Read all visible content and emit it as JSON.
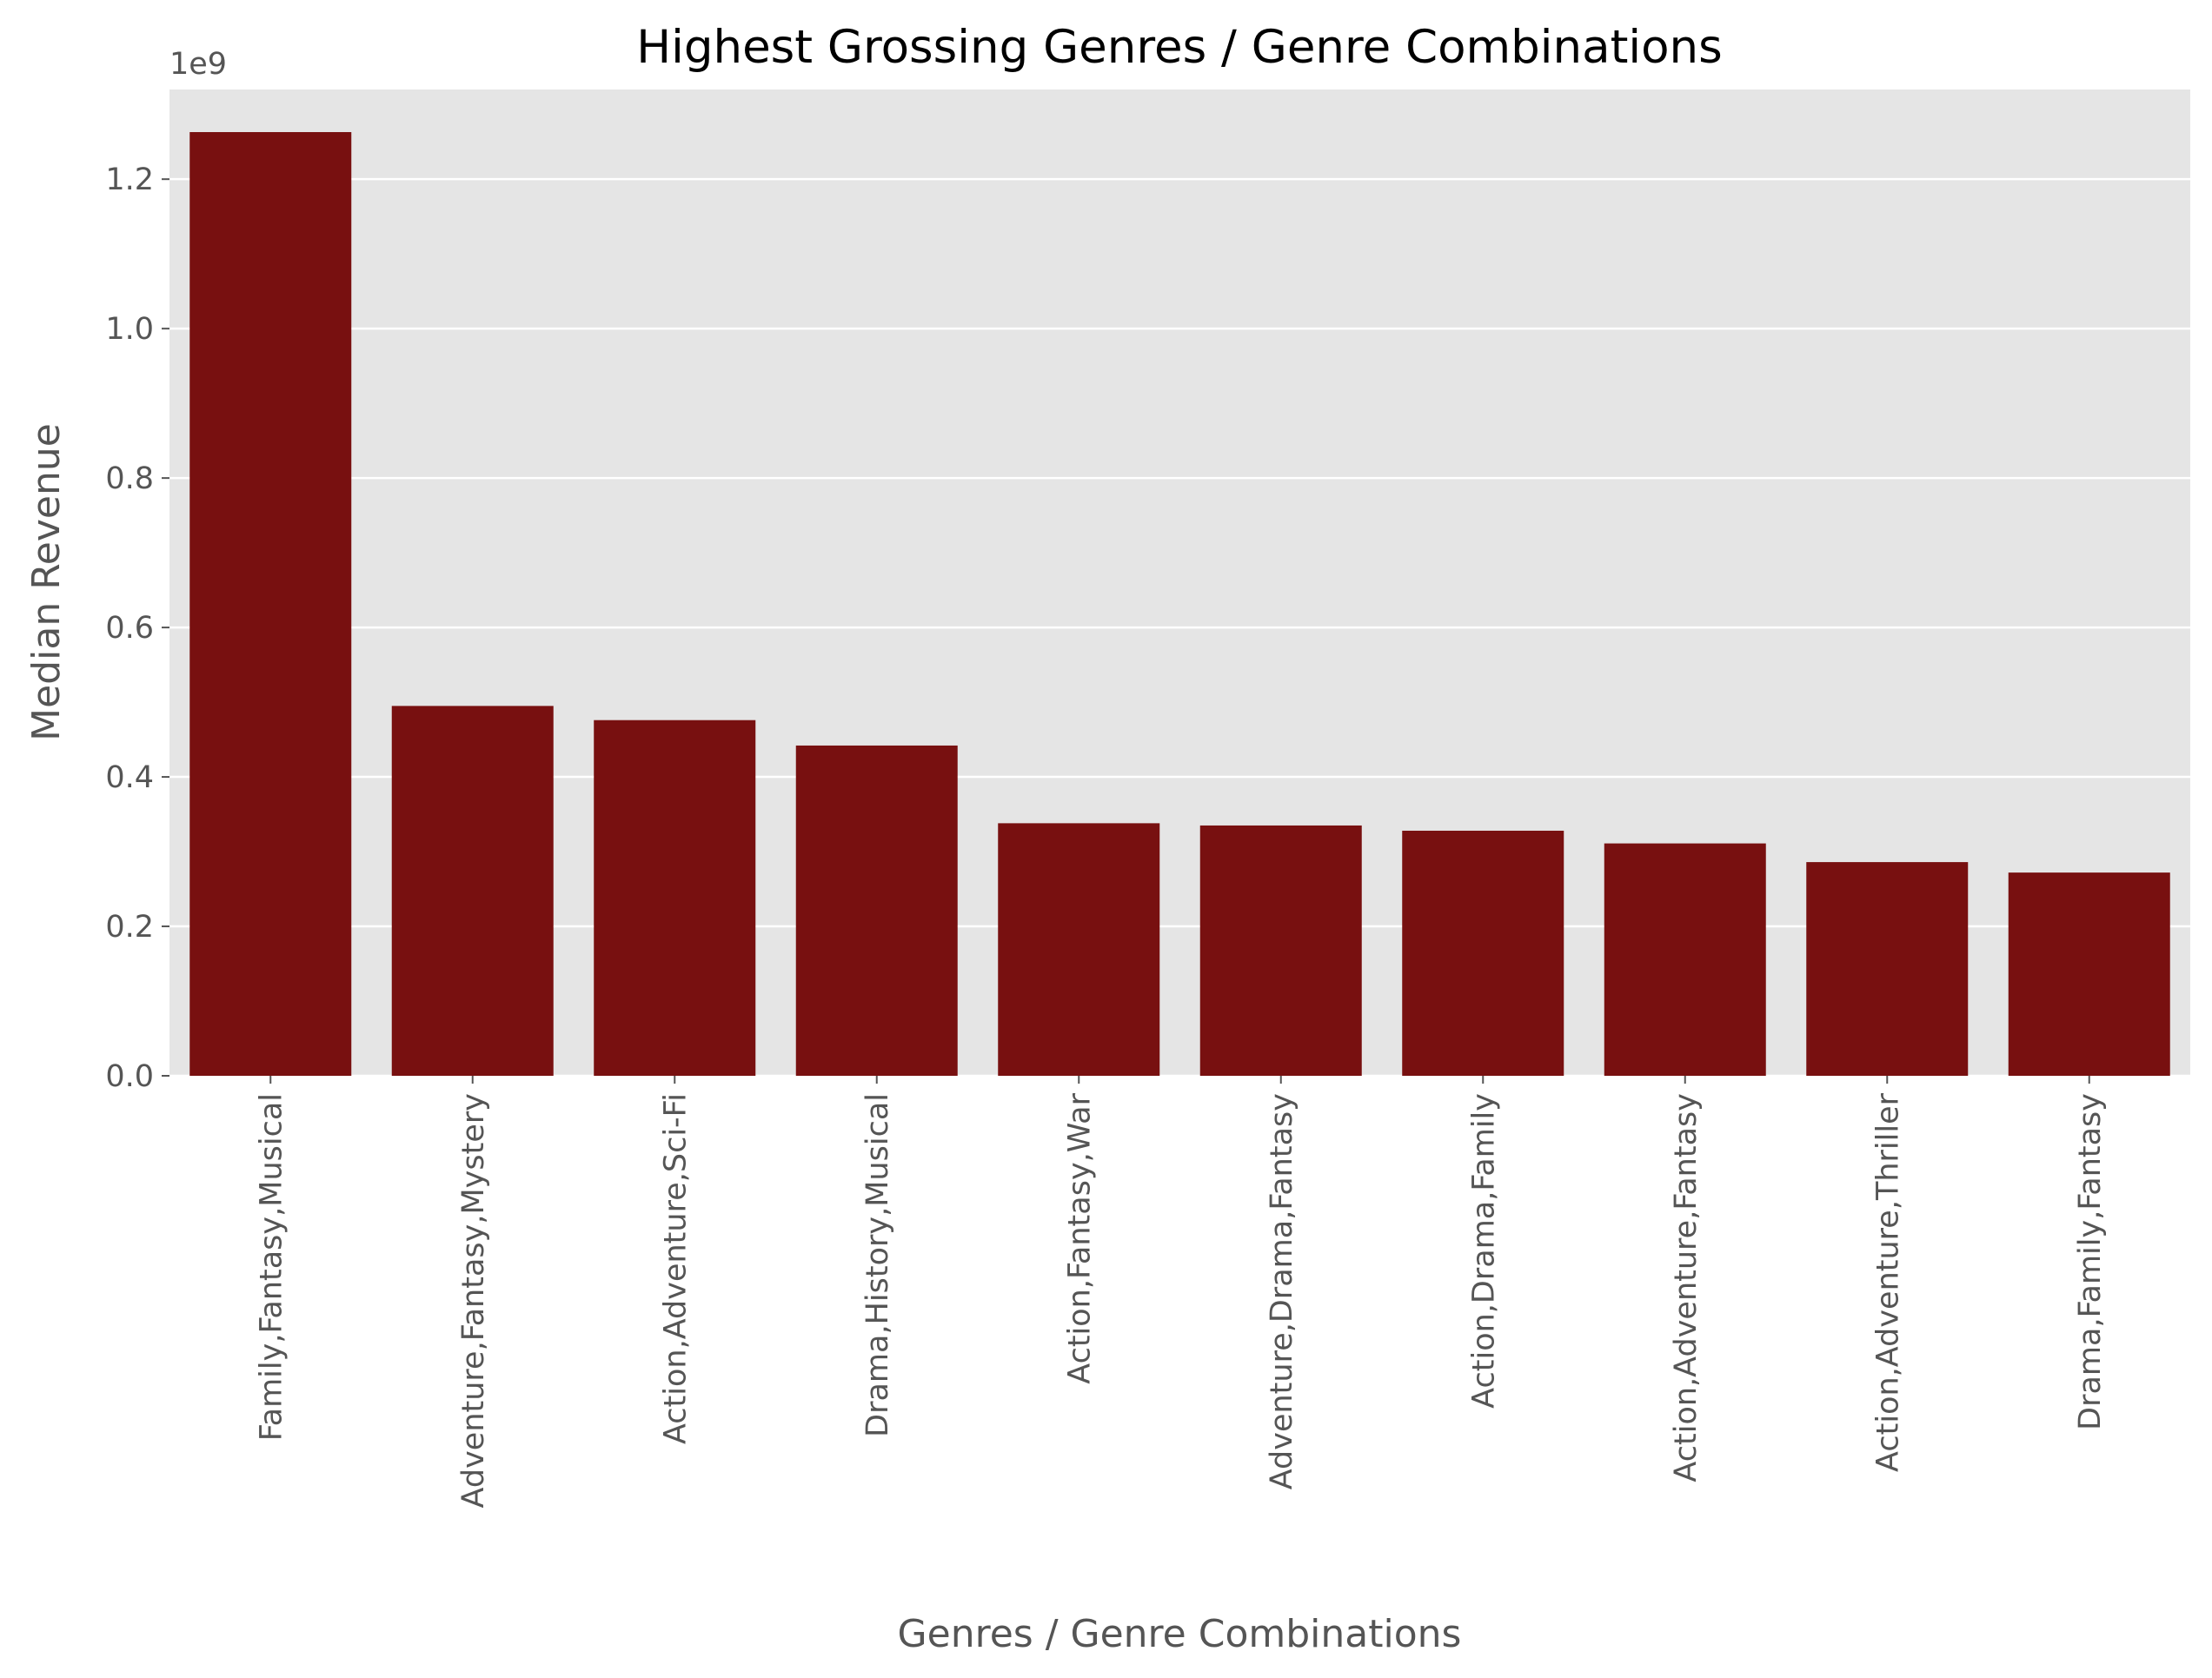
{
  "chart_data": {
    "type": "bar",
    "title": "Highest Grossing Genres / Genre Combinations",
    "xlabel": "Genres / Genre Combinations",
    "ylabel": "Median Revenue",
    "y_offset_label": "1e9",
    "ylim": [
      0,
      1.32
    ],
    "yticks": [
      "0.0",
      "0.2",
      "0.4",
      "0.6",
      "0.8",
      "1.0",
      "1.2"
    ],
    "grid": true,
    "categories": [
      "Family,Fantasy,Musical",
      "Adventure,Fantasy,Mystery",
      "Action,Adventure,Sci-Fi",
      "Drama,History,Musical",
      "Action,Fantasy,War",
      "Adventure,Drama,Fantasy",
      "Action,Drama,Family",
      "Action,Adventure,Fantasy",
      "Action,Adventure,Thriller",
      "Drama,Family,Fantasy"
    ],
    "values": [
      1.263,
      0.495,
      0.476,
      0.442,
      0.338,
      0.335,
      0.328,
      0.311,
      0.286,
      0.272
    ],
    "colors": {
      "bar": "#781010",
      "plot_background": "#e5e5e5",
      "grid": "#ffffff"
    }
  }
}
